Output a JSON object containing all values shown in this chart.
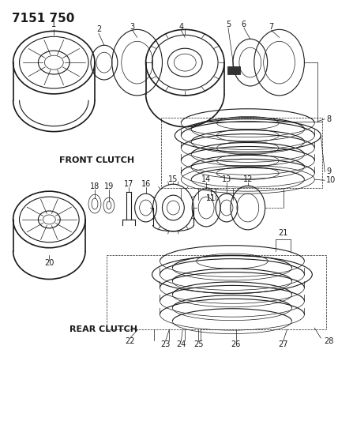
{
  "title": "7151 750",
  "bg_color": "#ffffff",
  "line_color": "#1a1a1a",
  "label_color": "#1a1a1a",
  "label_fontsize": 7.0,
  "front_clutch_label": "FRONT CLUTCH",
  "rear_clutch_label": "REAR CLUTCH"
}
